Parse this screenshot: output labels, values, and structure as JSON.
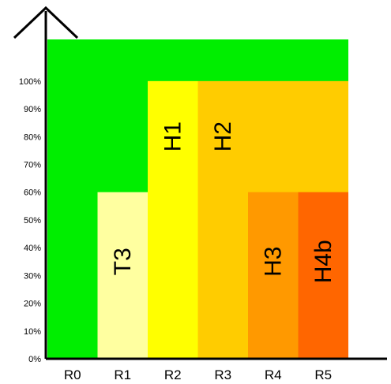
{
  "chart_data": {
    "type": "bar",
    "categories": [
      "R0",
      "R1",
      "R2",
      "R3",
      "R4",
      "R5"
    ],
    "y_ticks": [
      "0%",
      "10%",
      "20%",
      "30%",
      "40%",
      "50%",
      "60%",
      "70%",
      "80%",
      "90%",
      "100%"
    ],
    "ylim": [
      0,
      115
    ],
    "background": {
      "color": "#00ee00",
      "top": 115
    },
    "blocks": [
      {
        "label": "T3",
        "from": 1,
        "to": 2,
        "top": 60,
        "color": "#ffffa0"
      },
      {
        "label": "H1",
        "from": 2,
        "to": 3,
        "top": 100,
        "color": "#ffff00"
      },
      {
        "label": "H2",
        "from": 3,
        "to": 6,
        "top": 100,
        "color": "#ffcc00"
      },
      {
        "label": "H3",
        "from": 4,
        "to": 5,
        "top": 60,
        "color": "#ff9900"
      },
      {
        "label": "H4b",
        "from": 5,
        "to": 6,
        "top": 60,
        "color": "#ff6600"
      }
    ]
  }
}
